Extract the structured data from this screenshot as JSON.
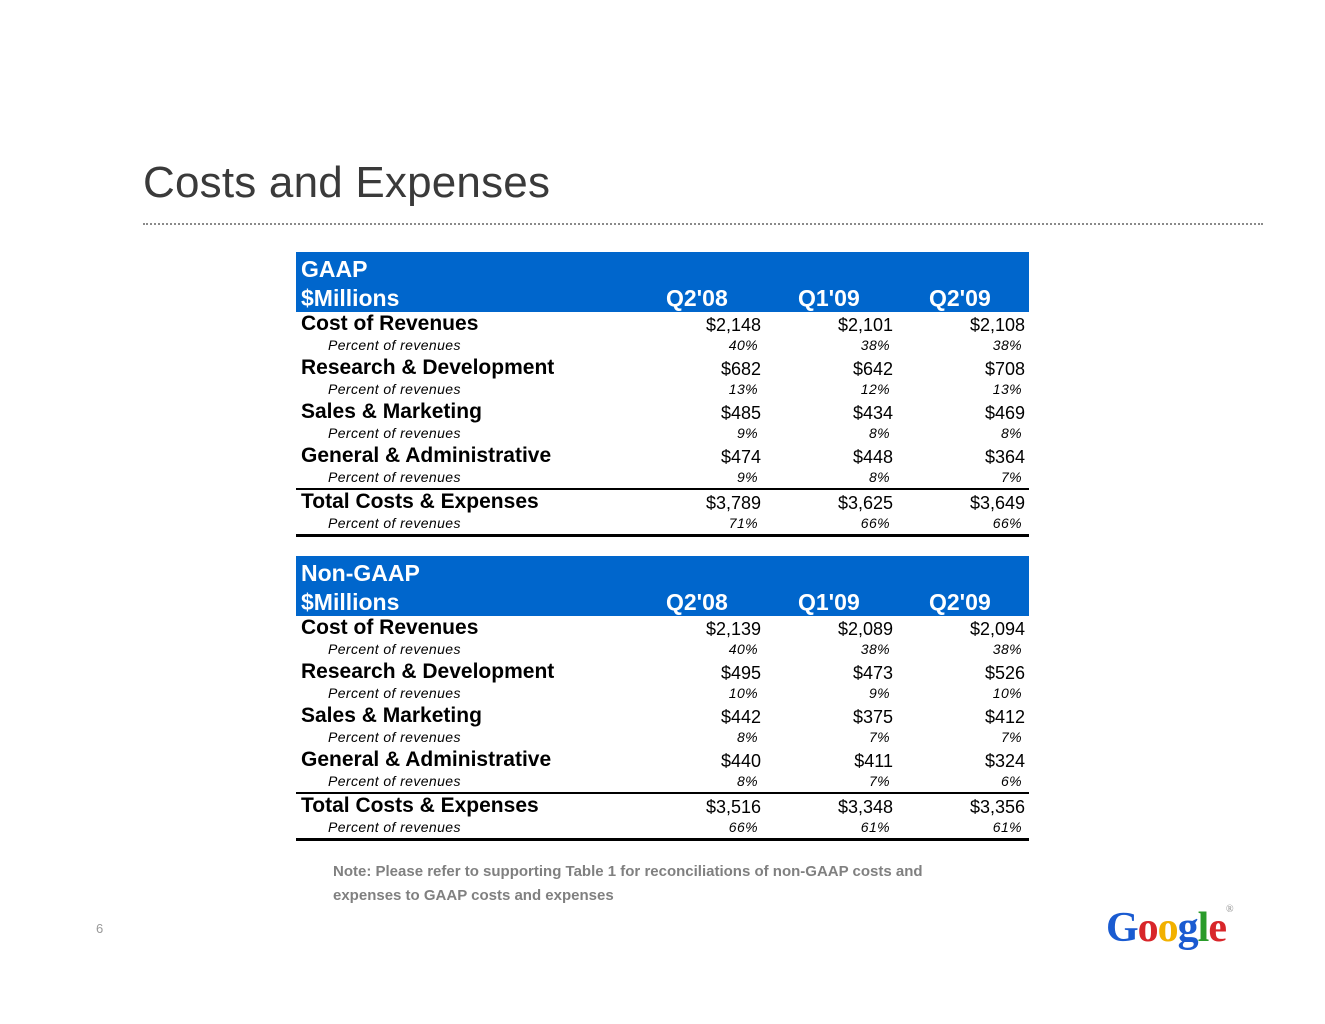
{
  "slide": {
    "title": "Costs and Expenses",
    "page_number": "6",
    "note_line1": "Note: Please refer to supporting Table 1 for reconciliations of non-GAAP costs and",
    "note_line2": "expenses to GAAP costs and expenses"
  },
  "logo": {
    "letters": [
      "G",
      "o",
      "o",
      "g",
      "l",
      "e"
    ],
    "colors": [
      "#1a5bd1",
      "#d8262a",
      "#f2b100",
      "#1a5bd1",
      "#2a9b2a",
      "#d8262a"
    ],
    "tm": "®"
  },
  "gaap": {
    "header_top": "GAAP",
    "header_label": "$Millions",
    "periods": [
      "Q2'08",
      "Q1'09",
      "Q2'09"
    ],
    "rows": [
      {
        "label": "Cost of Revenues",
        "values": [
          "$2,148",
          "$2,101",
          "$2,108"
        ],
        "pct_label": "Percent of revenues",
        "pct": [
          "40%",
          "38%",
          "38%"
        ]
      },
      {
        "label": "Research & Development",
        "values": [
          "$682",
          "$642",
          "$708"
        ],
        "pct_label": "Percent of revenues",
        "pct": [
          "13%",
          "12%",
          "13%"
        ]
      },
      {
        "label": "Sales & Marketing",
        "values": [
          "$485",
          "$434",
          "$469"
        ],
        "pct_label": "Percent of revenues",
        "pct": [
          "9%",
          "8%",
          "8%"
        ]
      },
      {
        "label": "General & Administrative",
        "values": [
          "$474",
          "$448",
          "$364"
        ],
        "pct_label": "Percent of revenues",
        "pct": [
          "9%",
          "8%",
          "7%"
        ]
      },
      {
        "label": "Total Costs & Expenses",
        "values": [
          "$3,789",
          "$3,625",
          "$3,649"
        ],
        "pct_label": "Percent of revenues",
        "pct": [
          "71%",
          "66%",
          "66%"
        ]
      }
    ]
  },
  "nongaap": {
    "header_top": "Non-GAAP",
    "header_label": "$Millions",
    "periods": [
      "Q2'08",
      "Q1'09",
      "Q2'09"
    ],
    "rows": [
      {
        "label": "Cost of Revenues",
        "values": [
          "$2,139",
          "$2,089",
          "$2,094"
        ],
        "pct_label": "Percent of revenues",
        "pct": [
          "40%",
          "38%",
          "38%"
        ]
      },
      {
        "label": "Research & Development",
        "values": [
          "$495",
          "$473",
          "$526"
        ],
        "pct_label": "Percent of revenues",
        "pct": [
          "10%",
          "9%",
          "10%"
        ]
      },
      {
        "label": "Sales & Marketing",
        "values": [
          "$442",
          "$375",
          "$412"
        ],
        "pct_label": "Percent of revenues",
        "pct": [
          "8%",
          "7%",
          "7%"
        ]
      },
      {
        "label": "General & Administrative",
        "values": [
          "$440",
          "$411",
          "$324"
        ],
        "pct_label": "Percent of revenues",
        "pct": [
          "8%",
          "7%",
          "6%"
        ]
      },
      {
        "label": "Total Costs & Expenses",
        "values": [
          "$3,516",
          "$3,348",
          "$3,356"
        ],
        "pct_label": "Percent of revenues",
        "pct": [
          "66%",
          "61%",
          "61%"
        ]
      }
    ]
  }
}
